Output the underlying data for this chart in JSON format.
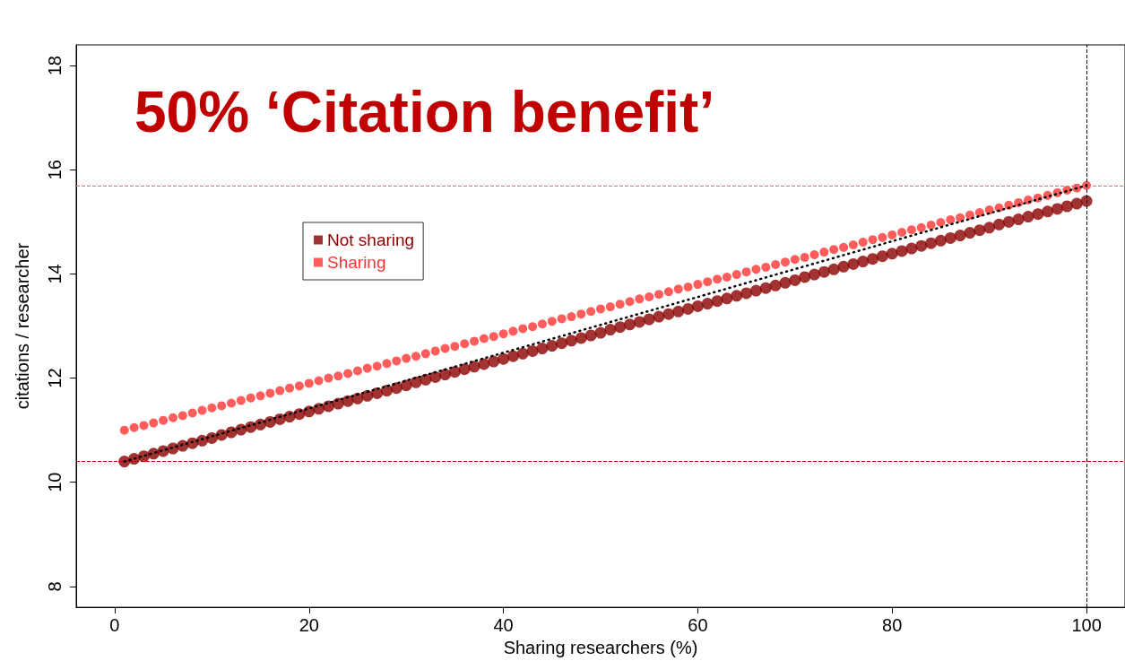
{
  "chart_data": {
    "type": "scatter",
    "title": "50% ‘Citation benefit’",
    "xlabel": "Sharing researchers (%)",
    "ylabel": "citations / researcher",
    "x": [
      1,
      2,
      3,
      4,
      5,
      6,
      7,
      8,
      9,
      10,
      11,
      12,
      13,
      14,
      15,
      16,
      17,
      18,
      19,
      20,
      21,
      22,
      23,
      24,
      25,
      26,
      27,
      28,
      29,
      30,
      31,
      32,
      33,
      34,
      35,
      36,
      37,
      38,
      39,
      40,
      41,
      42,
      43,
      44,
      45,
      46,
      47,
      48,
      49,
      50,
      51,
      52,
      53,
      54,
      55,
      56,
      57,
      58,
      59,
      60,
      61,
      62,
      63,
      64,
      65,
      66,
      67,
      68,
      69,
      70,
      71,
      72,
      73,
      74,
      75,
      76,
      77,
      78,
      79,
      80,
      81,
      82,
      83,
      84,
      85,
      86,
      87,
      88,
      89,
      90,
      91,
      92,
      93,
      94,
      95,
      96,
      97,
      98,
      99,
      100
    ],
    "series": [
      {
        "name": "Not sharing",
        "color": "#8b0000",
        "values": [
          10.4,
          10.45,
          10.5,
          10.55,
          10.6,
          10.65,
          10.7,
          10.75,
          10.8,
          10.85,
          10.91,
          10.96,
          11.01,
          11.06,
          11.11,
          11.16,
          11.21,
          11.26,
          11.31,
          11.36,
          11.41,
          11.46,
          11.51,
          11.56,
          11.61,
          11.66,
          11.71,
          11.76,
          11.81,
          11.86,
          11.92,
          11.97,
          12.02,
          12.07,
          12.12,
          12.17,
          12.22,
          12.27,
          12.32,
          12.37,
          12.42,
          12.47,
          12.52,
          12.57,
          12.62,
          12.67,
          12.72,
          12.77,
          12.82,
          12.87,
          12.93,
          12.98,
          13.03,
          13.08,
          13.13,
          13.18,
          13.23,
          13.28,
          13.33,
          13.38,
          13.43,
          13.48,
          13.53,
          13.58,
          13.63,
          13.68,
          13.73,
          13.78,
          13.83,
          13.88,
          13.94,
          13.99,
          14.04,
          14.09,
          14.14,
          14.19,
          14.24,
          14.29,
          14.34,
          14.39,
          14.44,
          14.49,
          14.54,
          14.59,
          14.64,
          14.69,
          14.74,
          14.79,
          14.84,
          14.89,
          14.95,
          15.0,
          15.05,
          15.1,
          15.15,
          15.2,
          15.25,
          15.3,
          15.35,
          15.4
        ]
      },
      {
        "name": "Sharing",
        "color": "#ff3333",
        "values": [
          11.0,
          11.05,
          11.09,
          11.14,
          11.19,
          11.24,
          11.28,
          11.33,
          11.38,
          11.43,
          11.47,
          11.52,
          11.57,
          11.62,
          11.66,
          11.71,
          11.76,
          11.81,
          11.85,
          11.9,
          11.95,
          12.0,
          12.04,
          12.09,
          12.14,
          12.19,
          12.23,
          12.28,
          12.33,
          12.38,
          12.42,
          12.47,
          12.52,
          12.57,
          12.61,
          12.66,
          12.71,
          12.76,
          12.8,
          12.85,
          12.9,
          12.95,
          12.99,
          13.04,
          13.09,
          13.14,
          13.18,
          13.23,
          13.28,
          13.33,
          13.37,
          13.42,
          13.47,
          13.52,
          13.56,
          13.61,
          13.66,
          13.71,
          13.75,
          13.8,
          13.85,
          13.9,
          13.94,
          13.99,
          14.04,
          14.09,
          14.13,
          14.18,
          14.23,
          14.28,
          14.32,
          14.37,
          14.42,
          14.47,
          14.51,
          14.56,
          14.61,
          14.66,
          14.7,
          14.75,
          14.8,
          14.85,
          14.89,
          14.94,
          14.99,
          15.04,
          15.08,
          15.13,
          15.18,
          15.23,
          15.27,
          15.32,
          15.37,
          15.42,
          15.46,
          15.51,
          15.56,
          15.61,
          15.65,
          15.7
        ]
      },
      {
        "type": "line",
        "color": "#000000",
        "x": [
          1,
          100
        ],
        "values": [
          10.4,
          15.7
        ],
        "line_style": "dotted",
        "marker": "none"
      }
    ],
    "xlim": [
      -3.96,
      103.96
    ],
    "xticks": [
      0,
      20,
      40,
      60,
      80,
      100
    ],
    "ylim": [
      7.6,
      18.4
    ],
    "yticks": [
      8,
      10,
      12,
      14,
      16,
      18
    ],
    "ref_lines": [
      {
        "axis": "y",
        "value": 15.7,
        "color": "#ff6666",
        "line_style": "dashed"
      },
      {
        "axis": "y",
        "value": 10.4,
        "color": "#c00000",
        "line_style": "dashed"
      },
      {
        "axis": "x",
        "value": 100,
        "color": "#000000",
        "line_style": "dashed"
      }
    ],
    "marker": "circle",
    "grid": false,
    "legend": "top left"
  }
}
